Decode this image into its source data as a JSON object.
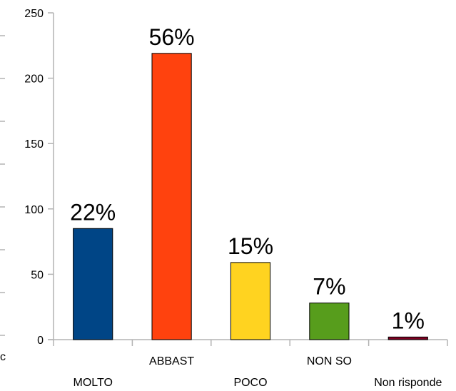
{
  "chart_data": {
    "type": "bar",
    "categories": [
      "MOLTO",
      "ABBAST",
      "POCO",
      "NON SO",
      "Non risponde"
    ],
    "values": [
      85,
      219,
      59,
      28,
      2
    ],
    "data_labels": [
      "22%",
      "56%",
      "15%",
      "7%",
      "1%"
    ],
    "colors": [
      "#004586",
      "#ff420e",
      "#ffd320",
      "#579d1c",
      "#7e0021"
    ],
    "ylim": [
      0,
      250
    ],
    "yticks": [
      0,
      50,
      100,
      150,
      200,
      250
    ],
    "grid": false,
    "legend": "none",
    "category_label_rows": [
      "bottom",
      "top",
      "bottom",
      "top",
      "bottom"
    ],
    "edge_fragment": "c"
  }
}
